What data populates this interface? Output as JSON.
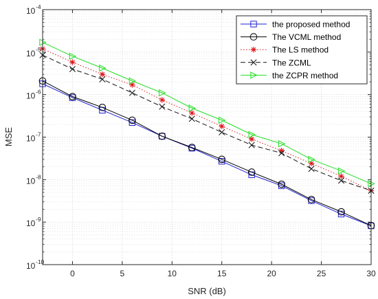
{
  "chart_data": {
    "type": "line",
    "xlabel": "SNR (dB)",
    "ylabel": "MSE",
    "xlim": [
      -3,
      30
    ],
    "ylim_exponents": [
      -10,
      -4
    ],
    "yscale": "log",
    "x_tick_labels": [
      "0",
      "5",
      "10",
      "15",
      "20",
      "25",
      "30"
    ],
    "x_ticks": [
      0,
      5,
      10,
      15,
      20,
      25,
      30
    ],
    "y_tick_exponents": [
      -10,
      -9,
      -8,
      -7,
      -6,
      -5,
      -4
    ],
    "y_tick_base": "10",
    "y_tick_exponent_labels": [
      "-10",
      "-9",
      "-8",
      "-7",
      "-6",
      "-5",
      "-4"
    ],
    "grid": true,
    "minor_grid": true,
    "legend_position": "top-right",
    "x": [
      -3,
      0,
      3,
      6,
      9,
      12,
      15,
      18,
      21,
      24,
      27,
      30
    ],
    "series": [
      {
        "name": "the proposed method",
        "color": "#1f1fcf",
        "line_style": "solid",
        "marker": "square",
        "values": [
          1.8e-06,
          8.5e-07,
          4.3e-07,
          2.2e-07,
          1.05e-07,
          5.5e-08,
          2.7e-08,
          1.3e-08,
          7.2e-09,
          3.2e-09,
          1.55e-09,
          8.2e-10
        ]
      },
      {
        "name": "The VCML method",
        "color": "#000000",
        "line_style": "solid",
        "marker": "circle",
        "values": [
          2.1e-06,
          9e-07,
          5e-07,
          2.5e-07,
          1.05e-07,
          5.7e-08,
          3e-08,
          1.5e-08,
          7.8e-09,
          3.4e-09,
          1.75e-09,
          8.3e-10
        ]
      },
      {
        "name": "The LS method",
        "color": "#e0151c",
        "line_style": "dotted",
        "marker": "star",
        "values": [
          1.2e-05,
          5.8e-06,
          3e-06,
          1.7e-06,
          7.5e-07,
          3.7e-07,
          1.8e-07,
          9e-08,
          4.8e-08,
          2.4e-08,
          1.2e-08,
          5.5e-09
        ]
      },
      {
        "name": "The ZCML",
        "color": "#111111",
        "line_style": "dashed",
        "marker": "x",
        "values": [
          8.5e-06,
          4e-06,
          2.3e-06,
          1.1e-06,
          5.2e-07,
          2.7e-07,
          1.3e-07,
          6.5e-08,
          4.2e-08,
          1.8e-08,
          9.5e-09,
          5.5e-09
        ]
      },
      {
        "name": "the ZCPR method",
        "color": "#22dd22",
        "line_style": "solid",
        "marker": "triangle-right",
        "values": [
          1.7e-05,
          8e-06,
          4.2e-06,
          2.1e-06,
          1.1e-06,
          4.8e-07,
          2.5e-07,
          1.15e-07,
          7e-08,
          3e-08,
          1.6e-08,
          8e-09
        ]
      }
    ]
  }
}
